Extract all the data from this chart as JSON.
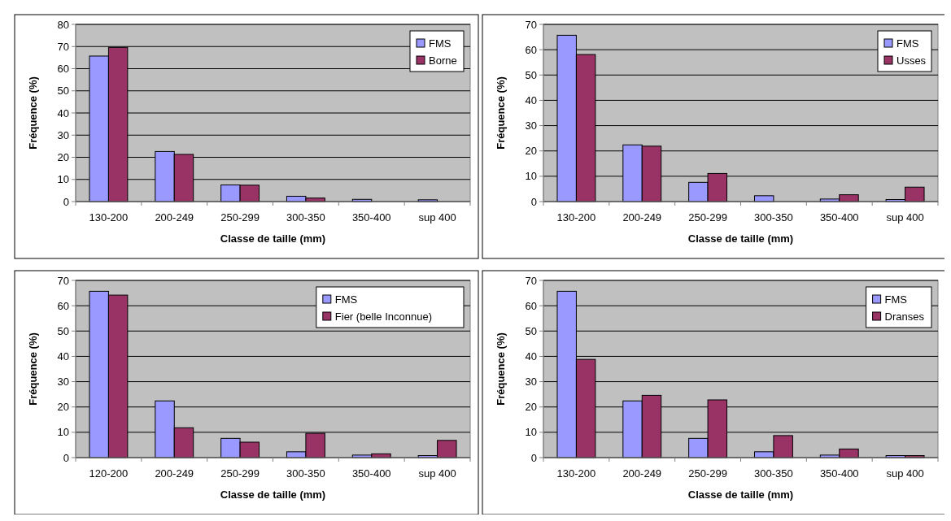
{
  "chart_data": [
    {
      "type": "bar",
      "xlabel": "Classe de taille (mm)",
      "ylabel": "Fréquence (%)",
      "categories": [
        "130-200",
        "200-249",
        "250-299",
        "300-350",
        "350-400",
        "sup 400"
      ],
      "series": [
        {
          "name": "FMS",
          "color": "#9999ff",
          "values": [
            65.7,
            22.6,
            7.5,
            2.4,
            1.0,
            0.8
          ]
        },
        {
          "name": "Borne",
          "color": "#993366",
          "values": [
            69.6,
            21.3,
            7.4,
            1.6,
            0,
            0
          ]
        }
      ],
      "ylim": [
        0,
        80
      ],
      "yticks": [
        0,
        10,
        20,
        30,
        40,
        50,
        60,
        70,
        80
      ],
      "grid": "y",
      "legend": "top right"
    },
    {
      "type": "bar",
      "xlabel": "Classe de taille (mm)",
      "ylabel": "Fréquence (%)",
      "categories": [
        "130-200",
        "200-249",
        "250-299",
        "300-350",
        "350-400",
        "sup 400"
      ],
      "series": [
        {
          "name": "FMS",
          "color": "#9999ff",
          "values": [
            65.7,
            22.4,
            7.6,
            2.3,
            1.0,
            0.8
          ]
        },
        {
          "name": "Usses",
          "color": "#993366",
          "values": [
            58.1,
            21.9,
            11.1,
            0,
            2.7,
            5.7
          ]
        }
      ],
      "ylim": [
        0,
        70
      ],
      "yticks": [
        0,
        10,
        20,
        30,
        40,
        50,
        60,
        70
      ],
      "grid": "y",
      "legend": "top right"
    },
    {
      "type": "bar",
      "xlabel": "Classe de taille (mm)",
      "ylabel": "Fréquence (%)",
      "categories": [
        "120-200",
        "200-249",
        "250-299",
        "300-350",
        "350-400",
        "sup 400"
      ],
      "series": [
        {
          "name": "FMS",
          "color": "#9999ff",
          "values": [
            65.7,
            22.4,
            7.6,
            2.3,
            1.0,
            0.8
          ]
        },
        {
          "name": "Fier (belle Inconnue)",
          "color": "#993366",
          "values": [
            64.2,
            11.8,
            6.1,
            9.6,
            1.5,
            6.8
          ]
        }
      ],
      "ylim": [
        0,
        70
      ],
      "yticks": [
        0,
        10,
        20,
        30,
        40,
        50,
        60,
        70
      ],
      "grid": "y",
      "legend": "top right"
    },
    {
      "type": "bar",
      "xlabel": "Classe de taille (mm)",
      "ylabel": "Fréquence (%)",
      "categories": [
        "130-200",
        "200-249",
        "250-299",
        "300-350",
        "350-400",
        "sup 400"
      ],
      "series": [
        {
          "name": "FMS",
          "color": "#9999ff",
          "values": [
            65.7,
            22.4,
            7.6,
            2.3,
            1.0,
            0.8
          ]
        },
        {
          "name": "Dranses",
          "color": "#993366",
          "values": [
            38.8,
            24.6,
            22.8,
            8.7,
            3.4,
            0.8
          ]
        }
      ],
      "ylim": [
        0,
        70
      ],
      "yticks": [
        0,
        10,
        20,
        30,
        40,
        50,
        60,
        70
      ],
      "grid": "y",
      "legend": "top right"
    }
  ]
}
